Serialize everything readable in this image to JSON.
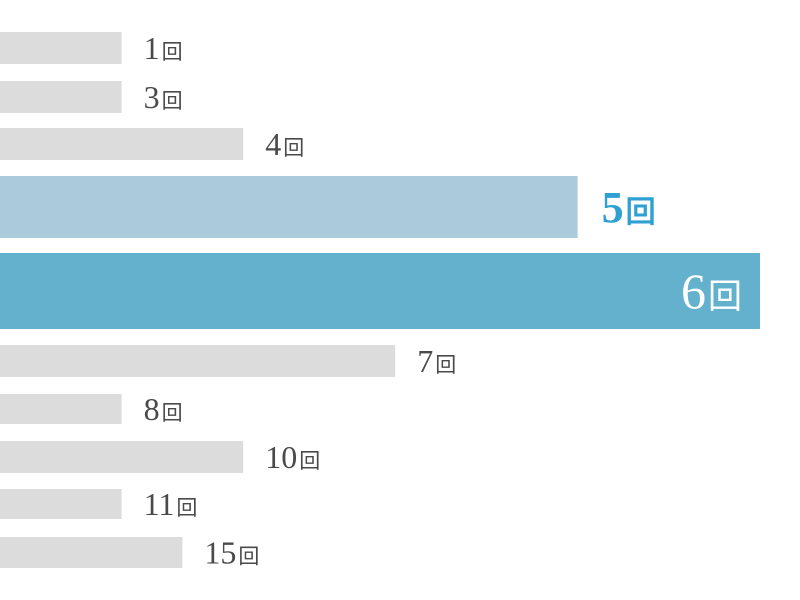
{
  "chart_data": {
    "type": "bar",
    "orientation": "horizontal",
    "grid": false,
    "legend": "none",
    "xlim": [
      0,
      25
    ],
    "categories": [
      "1回",
      "3回",
      "4回",
      "5回",
      "6回",
      "7回",
      "8回",
      "10回",
      "11回",
      "15回"
    ],
    "labels": [
      {
        "number": "1",
        "unit": "回"
      },
      {
        "number": "3",
        "unit": "回"
      },
      {
        "number": "4",
        "unit": "回"
      },
      {
        "number": "5",
        "unit": "回"
      },
      {
        "number": "6",
        "unit": "回"
      },
      {
        "number": "7",
        "unit": "回"
      },
      {
        "number": "8",
        "unit": "回"
      },
      {
        "number": "10",
        "unit": "回"
      },
      {
        "number": "11",
        "unit": "回"
      },
      {
        "number": "15",
        "unit": "回"
      }
    ],
    "values": [
      4,
      4,
      8,
      19,
      25,
      13,
      4,
      8,
      4,
      6
    ],
    "highlight": [
      null,
      null,
      null,
      "secondary",
      "primary",
      null,
      null,
      null,
      null,
      null
    ],
    "colors": {
      "default_bar": "#dcdcdc",
      "secondary_bar": "#abcadc",
      "primary_bar": "#63b1cd",
      "default_label": "#4a4a4a",
      "secondary_label": "#2ea1d2",
      "primary_label": "#ffffff"
    }
  }
}
